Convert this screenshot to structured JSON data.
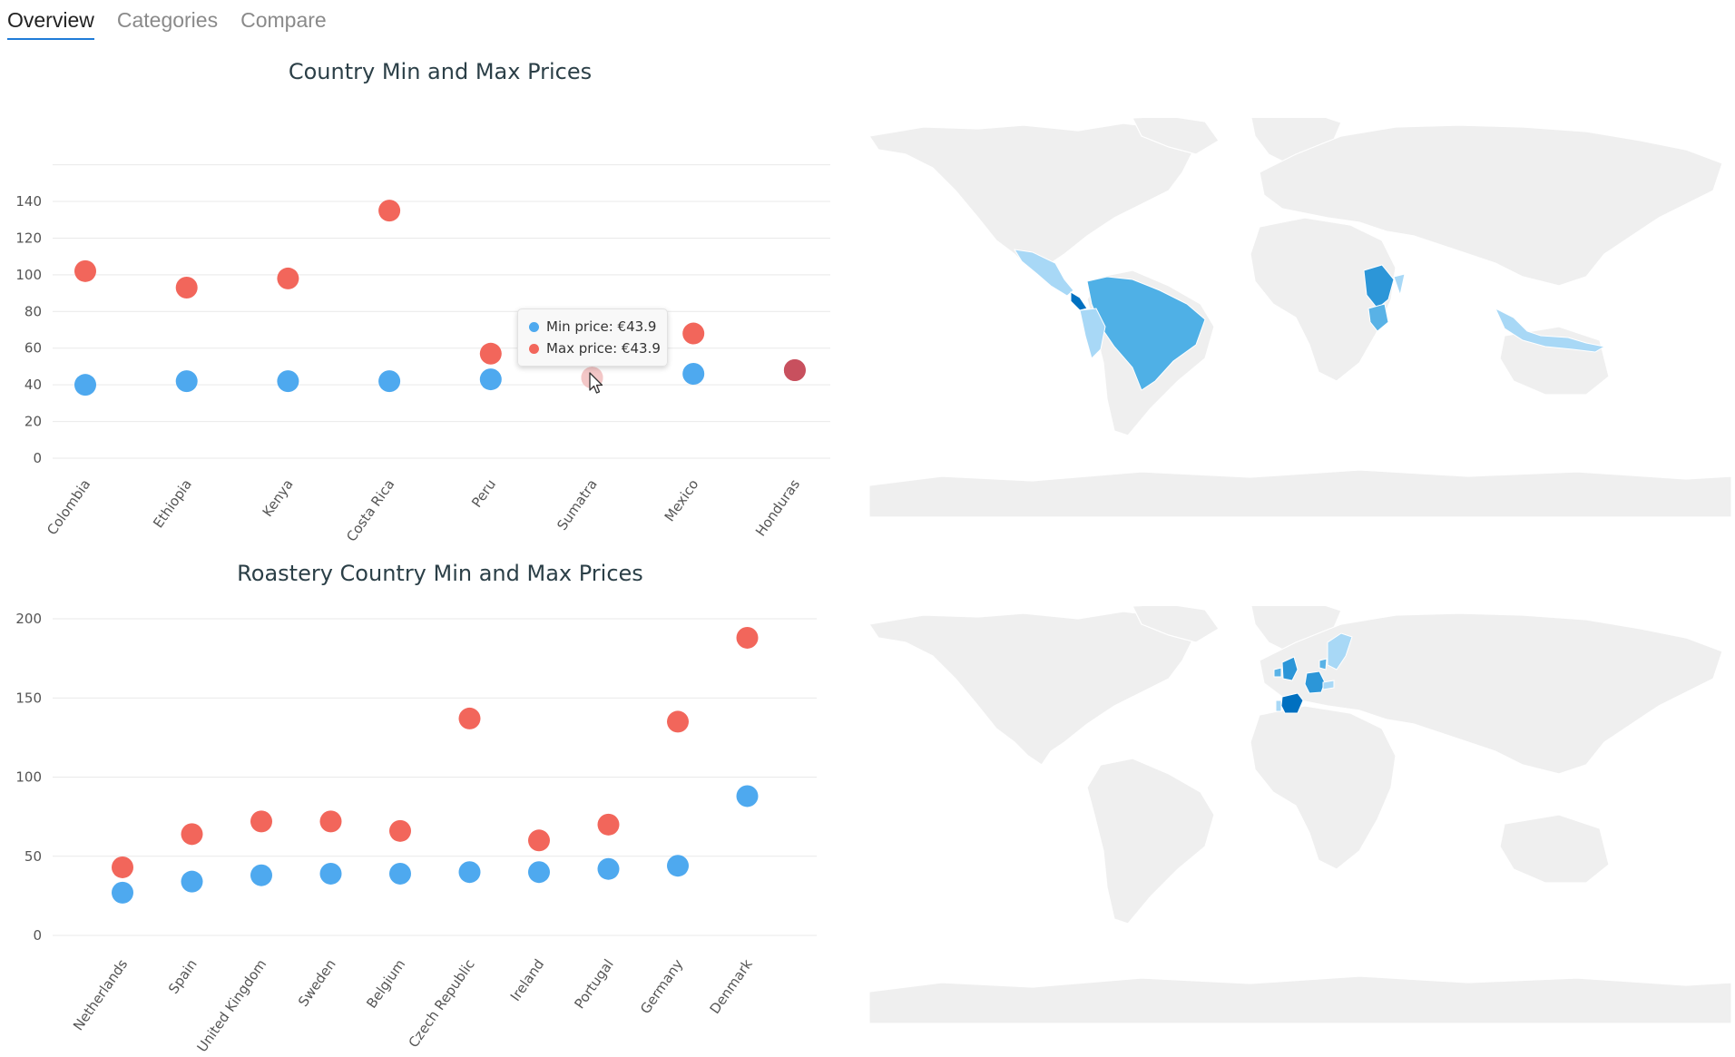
{
  "tabs": [
    {
      "label": "Overview",
      "active": true
    },
    {
      "label": "Categories",
      "active": false
    },
    {
      "label": "Compare",
      "active": false
    }
  ],
  "colors": {
    "min": "#4ea9ef",
    "max": "#f2665b",
    "hover_min": "#f3c7c7",
    "hover_max": "#c8505e",
    "map_land": "#efefef"
  },
  "chart_data": [
    {
      "type": "scatter",
      "title": "Country Min and Max Prices",
      "categories": [
        "Colombia",
        "Ethiopia",
        "Kenya",
        "Costa Rica",
        "Peru",
        "Sumatra",
        "Mexico",
        "Honduras"
      ],
      "series": [
        {
          "name": "Min price",
          "values": [
            40,
            42,
            42,
            42,
            43,
            43.9,
            46,
            48
          ]
        },
        {
          "name": "Max price",
          "values": [
            102,
            93,
            98,
            135,
            57,
            43.9,
            68,
            48
          ]
        }
      ],
      "yticks": [
        0,
        20,
        40,
        60,
        80,
        100,
        120,
        140
      ],
      "ylim": [
        0,
        160
      ],
      "grid": true,
      "legend": "none",
      "hover_index": 5
    },
    {
      "type": "scatter",
      "title": "Roastery Country Min and Max Prices",
      "categories": [
        "Netherlands",
        "Spain",
        "United Kingdom",
        "Sweden",
        "Belgium",
        "Czech Republic",
        "Ireland",
        "Portugal",
        "Germany",
        "Denmark"
      ],
      "series": [
        {
          "name": "Min price",
          "values": [
            27,
            34,
            38,
            39,
            39,
            40,
            40,
            42,
            44,
            88
          ]
        },
        {
          "name": "Max price",
          "values": [
            43,
            64,
            72,
            72,
            66,
            137,
            60,
            70,
            135,
            188
          ]
        }
      ],
      "yticks": [
        0,
        50,
        100,
        150,
        200
      ],
      "ylim": [
        0,
        200
      ],
      "grid": true,
      "legend": "none"
    }
  ],
  "tooltip": {
    "min_line": "Min price: €43.9",
    "max_line": "Max price: €43.9"
  }
}
